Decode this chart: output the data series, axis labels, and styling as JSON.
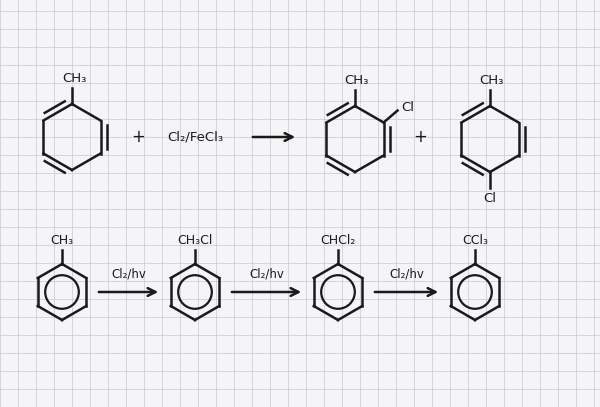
{
  "background_color": "#f5f5f7",
  "grid_color": "#c8c8d0",
  "line_color": "#1a1a1a",
  "line_width": 1.8,
  "font_size": 9,
  "reactions": {
    "top": {
      "reagent": "Cl₂/FeCl₃",
      "plus1": "+",
      "plus2": "+"
    },
    "bottom": {
      "reagent1": "Cl₂/hv",
      "reagent2": "Cl₂/hv",
      "reagent3": "Cl₂/hv"
    }
  },
  "labels": {
    "toluene_top": "CH₃",
    "ortho_methyl": "CH₃",
    "ortho_cl": "Cl",
    "para_methyl": "CH₃",
    "para_cl": "Cl",
    "toluene_bot": "CH₃",
    "benzyl_chloride": "CH₃Cl",
    "benzal_chloride": "CHCl₂",
    "benzotrichloride": "CCl₃"
  }
}
